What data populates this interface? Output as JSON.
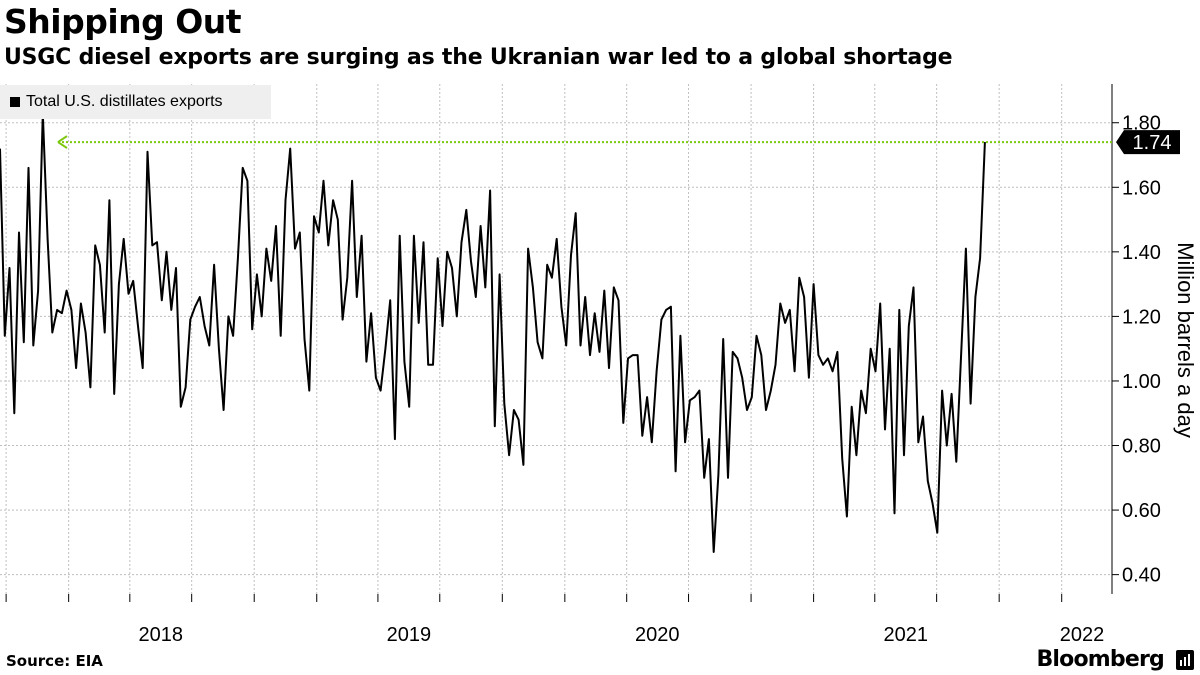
{
  "title": "Shipping Out",
  "subtitle": "USGC diesel exports are surging as the Ukranian war led to a global shortage",
  "source": "Source: EIA",
  "brand": "Bloomberg",
  "brand_icon": "bloomberg-terminal-icon",
  "colors": {
    "line": "#000000",
    "marker": "#7ac70c",
    "grid": "#bfbfbf",
    "legend_bg": "#efefef"
  },
  "chart_data": {
    "type": "line",
    "legend": [
      {
        "name": "Total U.S. distillates exports"
      }
    ],
    "ylabel": "Million barrels a day",
    "ylim": [
      0.34,
      1.92
    ],
    "yticks": [
      0.4,
      0.6,
      0.8,
      1.0,
      1.2,
      1.4,
      1.6,
      1.8
    ],
    "ytick_labels": [
      "0.40",
      "0.60",
      "0.80",
      "1.00",
      "1.20",
      "1.40",
      "1.60",
      "1.80"
    ],
    "xlim": [
      "2017-09-22",
      "2022-03-16"
    ],
    "xtick_labels": [
      {
        "label": "2018",
        "date": "2018-01-01"
      },
      {
        "label": "2019",
        "date": "2019-01-01"
      },
      {
        "label": "2020",
        "date": "2020-01-01"
      },
      {
        "label": "2021",
        "date": "2021-01-01"
      },
      {
        "label": "2022",
        "date": "2022-01-01"
      }
    ],
    "latest_label": "1.74",
    "reference_value": 1.74,
    "grid": true,
    "legend_position": "top-left",
    "series": [
      {
        "name": "Total U.S. distillates exports",
        "start": "2017-09-22",
        "interval_days": 7,
        "values": [
          1.72,
          1.14,
          1.35,
          0.9,
          1.46,
          1.12,
          1.66,
          1.11,
          1.28,
          1.83,
          1.44,
          1.15,
          1.22,
          1.21,
          1.28,
          1.22,
          1.04,
          1.24,
          1.15,
          0.98,
          1.42,
          1.36,
          1.15,
          1.56,
          0.96,
          1.3,
          1.44,
          1.27,
          1.31,
          1.17,
          1.04,
          1.71,
          1.42,
          1.43,
          1.25,
          1.4,
          1.22,
          1.35,
          0.92,
          0.98,
          1.19,
          1.23,
          1.26,
          1.17,
          1.11,
          1.36,
          1.1,
          0.91,
          1.2,
          1.14,
          1.38,
          1.66,
          1.62,
          1.16,
          1.33,
          1.2,
          1.41,
          1.31,
          1.48,
          1.14,
          1.56,
          1.72,
          1.41,
          1.46,
          1.13,
          0.97,
          1.51,
          1.46,
          1.62,
          1.42,
          1.56,
          1.5,
          1.19,
          1.32,
          1.62,
          1.26,
          1.45,
          1.06,
          1.21,
          1.01,
          0.97,
          1.1,
          1.25,
          0.82,
          1.45,
          1.06,
          0.92,
          1.45,
          1.18,
          1.43,
          1.05,
          1.05,
          1.38,
          1.17,
          1.4,
          1.35,
          1.2,
          1.43,
          1.53,
          1.37,
          1.26,
          1.48,
          1.29,
          1.59,
          0.86,
          1.33,
          0.93,
          0.77,
          0.91,
          0.88,
          0.74,
          1.41,
          1.29,
          1.12,
          1.07,
          1.36,
          1.32,
          1.44,
          1.23,
          1.11,
          1.39,
          1.52,
          1.11,
          1.26,
          1.08,
          1.21,
          1.09,
          1.28,
          1.04,
          1.29,
          1.25,
          0.87,
          1.07,
          1.08,
          1.08,
          0.83,
          0.95,
          0.81,
          1.03,
          1.19,
          1.22,
          1.23,
          0.72,
          1.14,
          0.81,
          0.94,
          0.95,
          0.97,
          0.7,
          0.82,
          0.47,
          0.71,
          1.13,
          0.7,
          1.09,
          1.07,
          1.01,
          0.91,
          0.95,
          1.14,
          1.08,
          0.91,
          0.97,
          1.05,
          1.24,
          1.18,
          1.22,
          1.03,
          1.32,
          1.26,
          1.01,
          1.3,
          1.08,
          1.05,
          1.07,
          1.03,
          1.09,
          0.76,
          0.58,
          0.92,
          0.77,
          0.97,
          0.9,
          1.1,
          1.03,
          1.24,
          0.85,
          1.1,
          0.59,
          1.22,
          0.77,
          1.17,
          1.29,
          0.81,
          0.89,
          0.69,
          0.62,
          0.53,
          0.97,
          0.8,
          0.96,
          0.75,
          1.08,
          1.41,
          0.93,
          1.26,
          1.38,
          1.74
        ]
      }
    ]
  }
}
